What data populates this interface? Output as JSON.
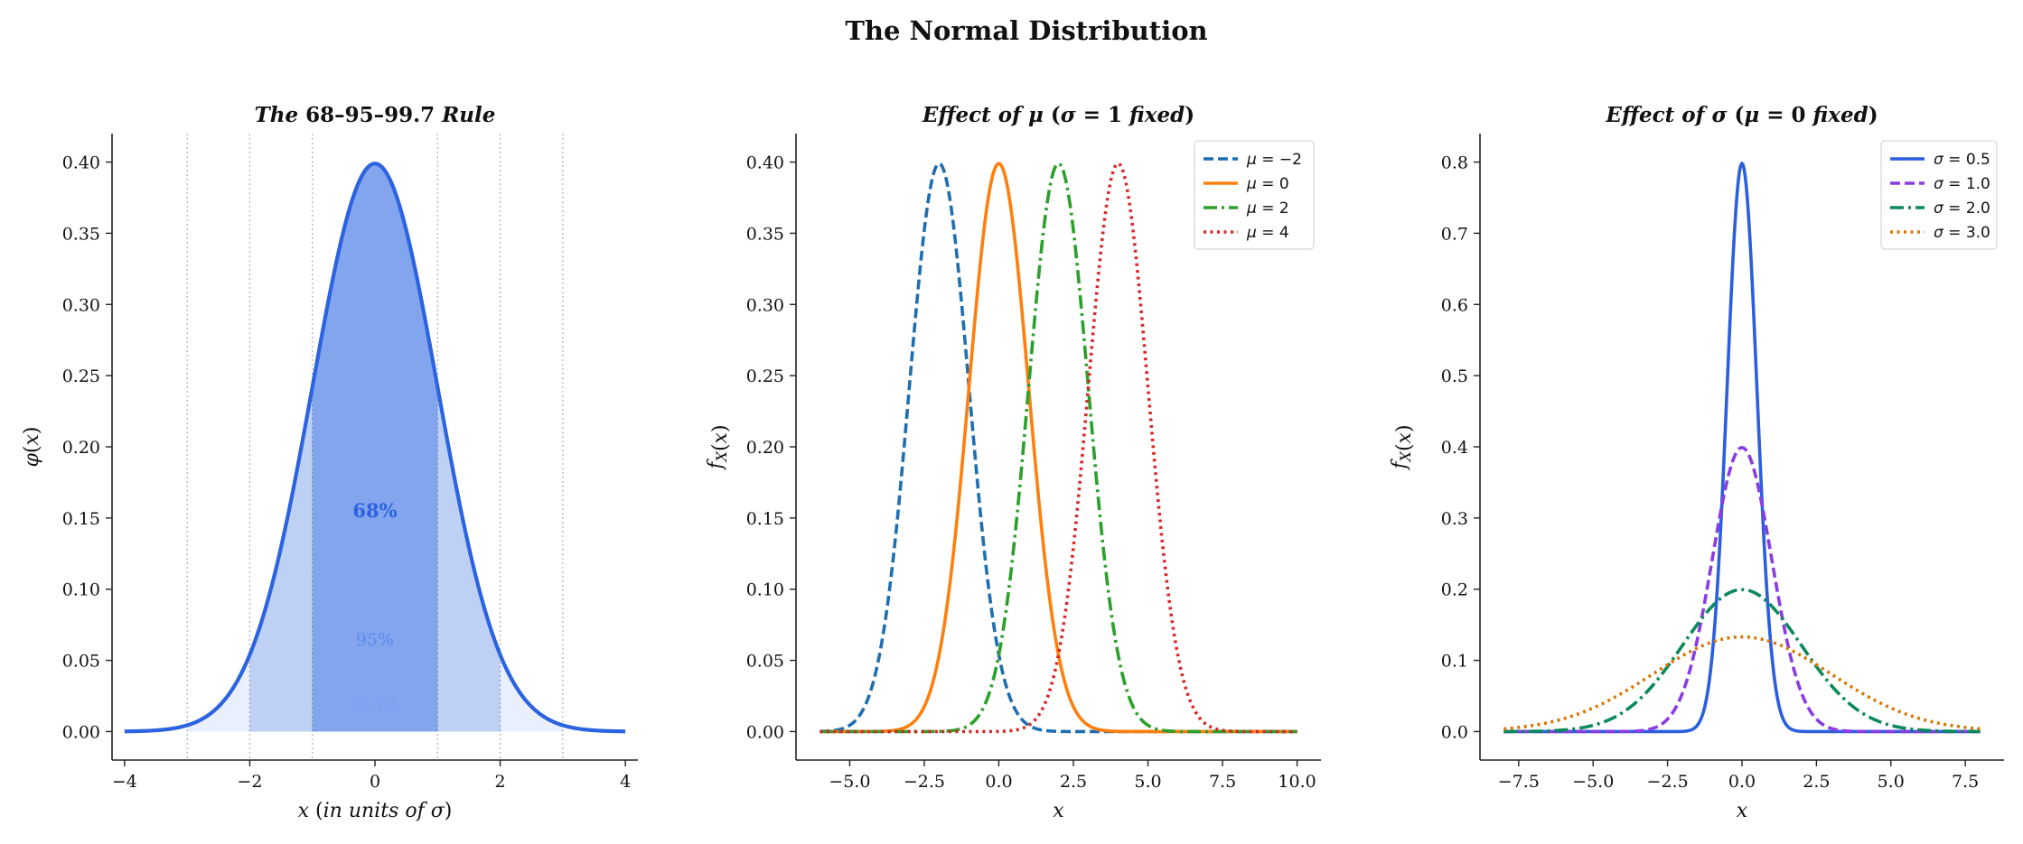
{
  "suptitle": "The Normal Distribution",
  "chart_data": [
    {
      "type": "area",
      "title": "The 68–95–99.7 Rule",
      "xlabel": "x (in units of σ)",
      "ylabel": "φ(x)",
      "xlim": [
        -4.2,
        4.2
      ],
      "ylim": [
        -0.02,
        0.42
      ],
      "xticks": [
        -4,
        -2,
        0,
        2,
        4
      ],
      "xtick_labels": [
        "−4",
        "−2",
        "0",
        "2",
        "4"
      ],
      "yticks": [
        0.0,
        0.05,
        0.1,
        0.15,
        0.2,
        0.25,
        0.3,
        0.35,
        0.4
      ],
      "ytick_labels": [
        "0.00",
        "0.05",
        "0.10",
        "0.15",
        "0.20",
        "0.25",
        "0.30",
        "0.35",
        "0.40"
      ],
      "curve": {
        "mu": 0,
        "sigma": 1,
        "x_range": [
          -4,
          4
        ],
        "color": "#2b63e0",
        "peak": 0.399
      },
      "vlines": [
        -3,
        -2,
        -1,
        1,
        2,
        3
      ],
      "bands": [
        {
          "label": "68%",
          "x": [
            -1,
            1
          ],
          "y": 0.155,
          "color": "#2b63e0"
        },
        {
          "label": "95%",
          "x": [
            -2,
            2
          ],
          "y": 0.065,
          "color": "#5b8cf5"
        },
        {
          "label": "99.7%",
          "x": [
            -3,
            3
          ],
          "y": 0.019,
          "color": "#7a9ff5"
        }
      ]
    },
    {
      "type": "line",
      "title": "Effect of μ (σ = 1 fixed)",
      "xlabel": "x",
      "ylabel": "fX(x)",
      "xlim": [
        -6.8,
        10.8
      ],
      "ylim": [
        -0.02,
        0.42
      ],
      "xticks": [
        -5,
        -2.5,
        0,
        2.5,
        5,
        7.5,
        10
      ],
      "xtick_labels": [
        "−5.0",
        "−2.5",
        "0.0",
        "2.5",
        "5.0",
        "7.5",
        "10.0"
      ],
      "yticks": [
        0.0,
        0.05,
        0.1,
        0.15,
        0.2,
        0.25,
        0.3,
        0.35,
        0.4
      ],
      "ytick_labels": [
        "0.00",
        "0.05",
        "0.10",
        "0.15",
        "0.20",
        "0.25",
        "0.30",
        "0.35",
        "0.40"
      ],
      "x_range": [
        -6,
        10
      ],
      "legend": "top-right",
      "series": [
        {
          "name": "μ = −2",
          "mu": -2,
          "sigma": 1,
          "color": "#1f6fb0",
          "dash": "dashed"
        },
        {
          "name": "μ = 0",
          "mu": 0,
          "sigma": 1,
          "color": "#ff7f0e",
          "dash": "solid"
        },
        {
          "name": "μ = 2",
          "mu": 2,
          "sigma": 1,
          "color": "#2ca02c",
          "dash": "dashdot"
        },
        {
          "name": "μ = 4",
          "mu": 4,
          "sigma": 1,
          "color": "#d62728",
          "dash": "dotted"
        }
      ]
    },
    {
      "type": "line",
      "title": "Effect of σ (μ = 0 fixed)",
      "xlabel": "x",
      "ylabel": "fX(x)",
      "xlim": [
        -8.8,
        8.8
      ],
      "ylim": [
        -0.04,
        0.84
      ],
      "xticks": [
        -7.5,
        -5,
        -2.5,
        0,
        2.5,
        5,
        7.5
      ],
      "xtick_labels": [
        "−7.5",
        "−5.0",
        "−2.5",
        "0.0",
        "2.5",
        "5.0",
        "7.5"
      ],
      "yticks": [
        0.0,
        0.1,
        0.2,
        0.3,
        0.4,
        0.5,
        0.6,
        0.7,
        0.8
      ],
      "ytick_labels": [
        "0.0",
        "0.1",
        "0.2",
        "0.3",
        "0.4",
        "0.5",
        "0.6",
        "0.7",
        "0.8"
      ],
      "x_range": [
        -8,
        8
      ],
      "legend": "top-right",
      "series": [
        {
          "name": "σ = 0.5",
          "mu": 0,
          "sigma": 0.5,
          "color": "#2b5fe0",
          "dash": "solid"
        },
        {
          "name": "σ = 1.0",
          "mu": 0,
          "sigma": 1.0,
          "color": "#8a3ee0",
          "dash": "dashed"
        },
        {
          "name": "σ = 2.0",
          "mu": 0,
          "sigma": 2.0,
          "color": "#0a8a5a",
          "dash": "dashdot"
        },
        {
          "name": "σ = 3.0",
          "mu": 0,
          "sigma": 3.0,
          "color": "#d97706",
          "dash": "dotted"
        }
      ]
    }
  ]
}
